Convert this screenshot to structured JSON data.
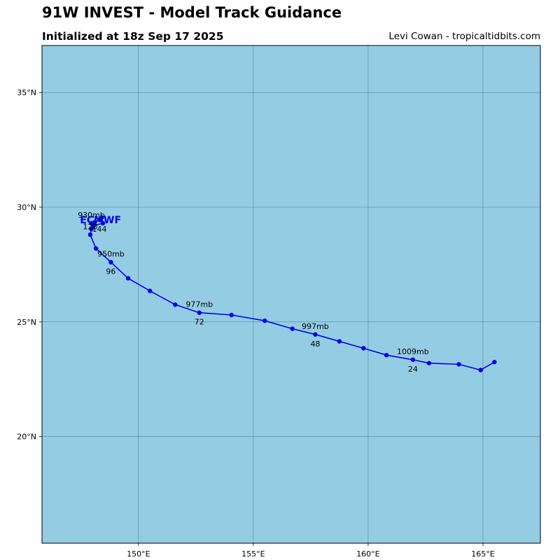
{
  "header": {
    "title": "91W INVEST - Model Track Guidance",
    "subtitle": "Initialized at 18z Sep 17 2025",
    "credit": "Levi Cowan - tropicaltidbits.com"
  },
  "colors": {
    "ocean": "#94cde3",
    "grid": "#4a6e7e",
    "track": "#0000ee",
    "label": "#0000ee"
  },
  "chart_data": {
    "type": "map-track",
    "xlim": [
      145.8,
      167.5
    ],
    "ylim": [
      15.35,
      37.05
    ],
    "x_ticks": [
      150,
      155,
      160,
      165
    ],
    "x_tick_labels": [
      "150°E",
      "155°E",
      "160°E",
      "165°E"
    ],
    "y_ticks": [
      20,
      25,
      30,
      35
    ],
    "y_tick_labels": [
      "20°N",
      "25°N",
      "30°N",
      "35°N"
    ],
    "grid": true,
    "series": [
      {
        "name": "ECMWF",
        "lon": [
          165.5,
          164.9,
          163.95,
          162.65,
          161.95,
          160.8,
          159.8,
          158.75,
          157.7,
          156.7,
          155.5,
          154.05,
          152.65,
          151.6,
          150.5,
          149.55,
          148.8,
          148.15,
          147.9,
          147.95,
          148.05,
          148.45,
          148.35,
          148.4,
          148.3,
          148.1,
          147.95
        ],
        "lat": [
          23.25,
          22.9,
          23.15,
          23.2,
          23.35,
          23.55,
          23.85,
          24.15,
          24.45,
          24.7,
          25.05,
          25.3,
          25.4,
          25.75,
          26.35,
          26.9,
          27.6,
          28.2,
          28.8,
          29.05,
          29.2,
          29.3,
          29.45,
          29.55,
          29.45,
          29.35,
          29.3
        ]
      }
    ],
    "annotations": [
      {
        "text": "1009mb",
        "lon": 161.95,
        "lat": 23.35,
        "pos": "above"
      },
      {
        "text": "24",
        "lon": 161.95,
        "lat": 23.35,
        "pos": "below"
      },
      {
        "text": "997mb",
        "lon": 157.7,
        "lat": 24.45,
        "pos": "above"
      },
      {
        "text": "48",
        "lon": 157.7,
        "lat": 24.45,
        "pos": "below"
      },
      {
        "text": "977mb",
        "lon": 152.65,
        "lat": 25.4,
        "pos": "above"
      },
      {
        "text": "72",
        "lon": 152.65,
        "lat": 25.4,
        "pos": "below"
      },
      {
        "text": "950mb",
        "lon": 148.8,
        "lat": 27.6,
        "pos": "above"
      },
      {
        "text": "96",
        "lon": 148.8,
        "lat": 27.6,
        "pos": "below"
      },
      {
        "text": "120",
        "lon": 147.9,
        "lat": 28.8,
        "pos": "above"
      },
      {
        "text": "930mb",
        "lon": 147.95,
        "lat": 29.3,
        "pos": "above"
      },
      {
        "text": "144",
        "lon": 148.3,
        "lat": 29.45,
        "pos": "below"
      }
    ],
    "model_label": {
      "text": "ECMWF",
      "lon": 148.35,
      "lat": 29.45
    }
  }
}
